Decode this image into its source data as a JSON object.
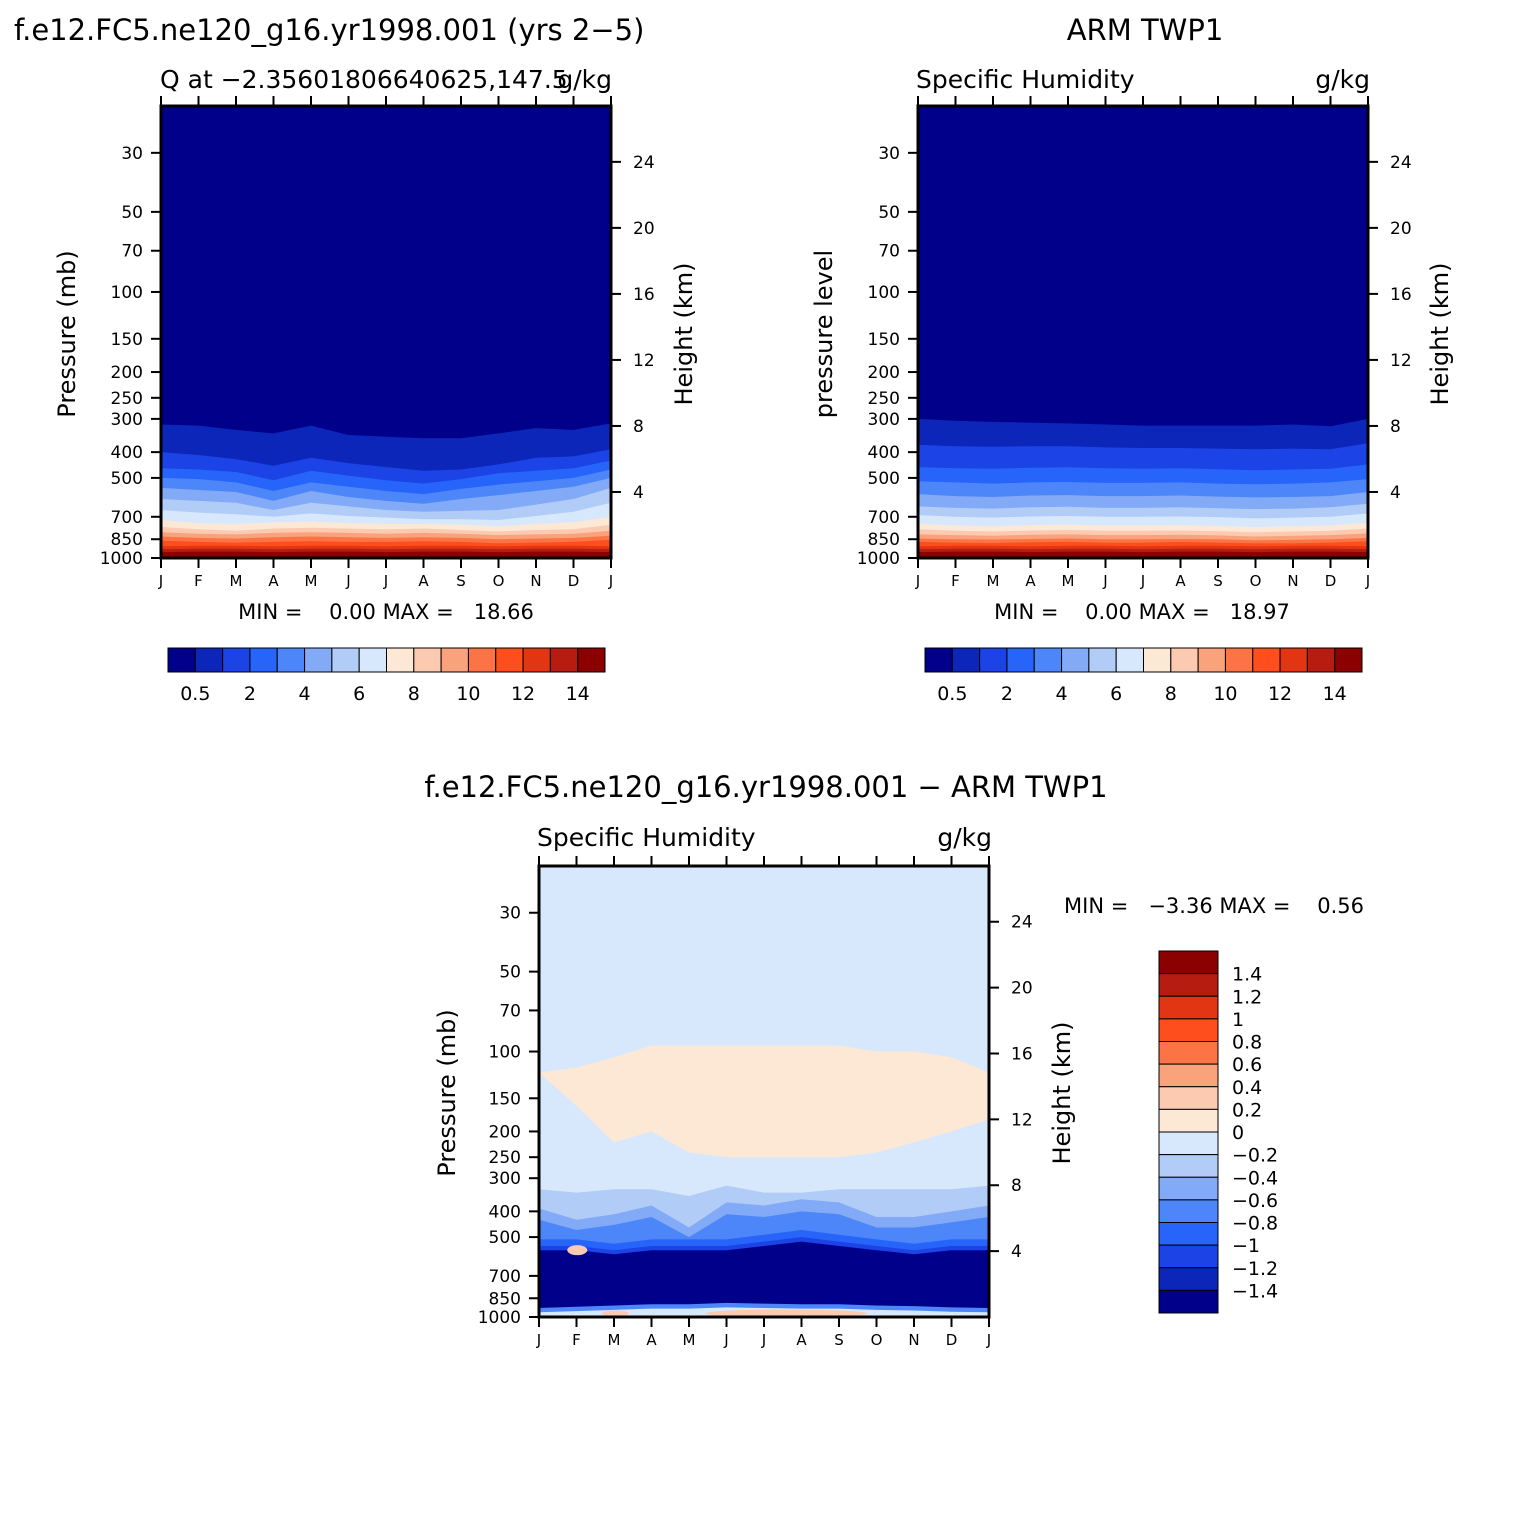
{
  "palette_sequential": [
    "#00008b",
    "#0b26b8",
    "#1b43e6",
    "#2764fa",
    "#4c86f8",
    "#82aaf6",
    "#b2ccf8",
    "#d8e8fc",
    "#fde8d6",
    "#fbcab0",
    "#f9a27c",
    "#fc7445",
    "#fe4e1e",
    "#e23514",
    "#b71c10",
    "#8b0000"
  ],
  "palette_difference": [
    "#00008b",
    "#0b26b8",
    "#1b43e6",
    "#2764fa",
    "#4c86f8",
    "#82aaf6",
    "#b2ccf8",
    "#d8e8fc",
    "#fde8d6",
    "#fbcab0",
    "#f9a27c",
    "#fc7445",
    "#fe4e1e",
    "#e23514",
    "#b71c10",
    "#8b0000"
  ],
  "chart_data": [
    {
      "type": "heatmap",
      "panel": "model",
      "title": "f.e12.FC5.ne120_g16.yr1998.001 (yrs 2−5)",
      "subtitle_left": "Q at −2.35601806640625,147.5",
      "subtitle_right": "g/kg",
      "xlabel": "",
      "ylabel": "Pressure (mb)",
      "y2label": "Height (km)",
      "x_ticks": [
        "J",
        "F",
        "M",
        "A",
        "M",
        "J",
        "J",
        "A",
        "S",
        "O",
        "N",
        "D",
        "J"
      ],
      "y_ticks": [
        30,
        50,
        70,
        100,
        150,
        200,
        250,
        300,
        400,
        500,
        700,
        850,
        1000
      ],
      "y_ticks_str": [
        "30",
        "50",
        "70",
        "100",
        "150",
        "200",
        "250",
        "300",
        "400",
        "500",
        "700",
        "850",
        "1000"
      ],
      "y2_ticks": [
        24,
        20,
        16,
        12,
        8,
        4
      ],
      "y2_ticks_str": [
        "24",
        "20",
        "16",
        "12",
        "8",
        "4"
      ],
      "ylim": [
        1000,
        20
      ],
      "stats_text": "MIN =    0.00 MAX =   18.66",
      "min": 0.0,
      "max": 18.66,
      "colorbar_levels": [
        0.5,
        1,
        2,
        3,
        4,
        5,
        6,
        7,
        8,
        9,
        10,
        11,
        12,
        13,
        14
      ],
      "colorbar_labels": [
        "0.5",
        "2",
        "4",
        "6",
        "8",
        "10",
        "12",
        "14"
      ],
      "contour_pressure_by_month": [
        [
          860,
          870,
          875,
          870,
          865,
          870,
          870,
          865,
          870,
          880,
          875,
          870,
          855
        ],
        [
          830,
          840,
          845,
          835,
          830,
          835,
          840,
          835,
          840,
          850,
          845,
          840,
          825
        ],
        [
          800,
          810,
          815,
          805,
          800,
          805,
          810,
          805,
          810,
          820,
          815,
          810,
          790
        ],
        [
          765,
          780,
          790,
          775,
          770,
          775,
          780,
          775,
          785,
          795,
          785,
          780,
          750
        ],
        [
          720,
          740,
          745,
          735,
          730,
          740,
          745,
          745,
          750,
          760,
          745,
          735,
          700
        ],
        [
          660,
          675,
          685,
          700,
          680,
          695,
          705,
          715,
          715,
          720,
          695,
          670,
          620
        ],
        [
          600,
          610,
          620,
          660,
          620,
          640,
          660,
          670,
          665,
          660,
          630,
          600,
          545
        ],
        [
          545,
          555,
          565,
          610,
          560,
          590,
          610,
          625,
          600,
          580,
          560,
          540,
          500
        ],
        [
          500,
          505,
          520,
          560,
          520,
          540,
          560,
          575,
          550,
          530,
          515,
          500,
          465
        ],
        [
          460,
          465,
          475,
          510,
          470,
          490,
          510,
          525,
          505,
          480,
          470,
          460,
          430
        ],
        [
          400,
          410,
          425,
          450,
          420,
          440,
          455,
          470,
          465,
          445,
          420,
          415,
          390
        ],
        [
          315,
          318,
          330,
          340,
          318,
          345,
          350,
          355,
          355,
          340,
          325,
          330,
          312
        ]
      ]
    },
    {
      "type": "heatmap",
      "panel": "observation",
      "title": "ARM TWP1",
      "subtitle_left": "Specific Humidity",
      "subtitle_right": "g/kg",
      "xlabel": "",
      "ylabel": "pressure level",
      "y2label": "Height (km)",
      "x_ticks": [
        "J",
        "F",
        "M",
        "A",
        "M",
        "J",
        "J",
        "A",
        "S",
        "O",
        "N",
        "D",
        "J"
      ],
      "y_ticks_str": [
        "30",
        "50",
        "70",
        "100",
        "150",
        "200",
        "250",
        "300",
        "400",
        "500",
        "700",
        "850",
        "1000"
      ],
      "y2_ticks_str": [
        "24",
        "20",
        "16",
        "12",
        "8",
        "4"
      ],
      "ylim": [
        1000,
        20
      ],
      "stats_text": "MIN =    0.00 MAX =   18.97",
      "min": 0.0,
      "max": 18.97,
      "colorbar_levels": [
        0.5,
        1,
        2,
        3,
        4,
        5,
        6,
        7,
        8,
        9,
        10,
        11,
        12,
        13,
        14
      ],
      "colorbar_labels": [
        "0.5",
        "2",
        "4",
        "6",
        "8",
        "10",
        "12",
        "14"
      ],
      "contour_pressure_by_month": [
        [
          870,
          875,
          878,
          872,
          870,
          875,
          875,
          870,
          875,
          880,
          880,
          875,
          865
        ],
        [
          845,
          850,
          852,
          848,
          845,
          850,
          850,
          848,
          850,
          858,
          855,
          850,
          840
        ],
        [
          815,
          820,
          825,
          818,
          815,
          820,
          820,
          818,
          822,
          830,
          825,
          820,
          808
        ],
        [
          780,
          790,
          795,
          788,
          785,
          790,
          790,
          788,
          792,
          800,
          795,
          790,
          775
        ],
        [
          745,
          755,
          760,
          752,
          750,
          755,
          755,
          752,
          758,
          765,
          760,
          755,
          738
        ],
        [
          690,
          700,
          705,
          698,
          695,
          700,
          700,
          698,
          702,
          710,
          705,
          700,
          680
        ],
        [
          640,
          648,
          652,
          645,
          642,
          648,
          648,
          645,
          650,
          655,
          652,
          645,
          625
        ],
        [
          575,
          585,
          590,
          582,
          580,
          585,
          585,
          582,
          588,
          592,
          590,
          585,
          565
        ],
        [
          515,
          520,
          525,
          520,
          518,
          522,
          522,
          520,
          525,
          528,
          525,
          520,
          505
        ],
        [
          455,
          460,
          462,
          458,
          456,
          460,
          462,
          460,
          464,
          468,
          465,
          462,
          445
        ],
        [
          375,
          380,
          382,
          380,
          380,
          384,
          386,
          386,
          388,
          390,
          388,
          390,
          370
        ],
        [
          300,
          305,
          308,
          310,
          312,
          315,
          318,
          318,
          318,
          318,
          315,
          320,
          300
        ]
      ]
    },
    {
      "type": "heatmap",
      "panel": "difference",
      "title": "f.e12.FC5.ne120_g16.yr1998.001 − ARM TWP1",
      "subtitle_left": "Specific Humidity",
      "subtitle_right": "g/kg",
      "xlabel": "",
      "ylabel": "Pressure (mb)",
      "y2label": "Height (km)",
      "x_ticks": [
        "J",
        "F",
        "M",
        "A",
        "M",
        "J",
        "J",
        "A",
        "S",
        "O",
        "N",
        "D",
        "J"
      ],
      "y_ticks_str": [
        "30",
        "50",
        "70",
        "100",
        "150",
        "200",
        "250",
        "300",
        "400",
        "500",
        "700",
        "850",
        "1000"
      ],
      "y2_ticks_str": [
        "24",
        "20",
        "16",
        "12",
        "8",
        "4"
      ],
      "ylim": [
        1000,
        20
      ],
      "stats_text": "MIN =   −3.36 MAX =    0.56",
      "min": -3.36,
      "max": 0.56,
      "colorbar_levels": [
        -1.4,
        -1.2,
        -1,
        -0.8,
        -0.6,
        -0.4,
        -0.2,
        0,
        0.2,
        0.4,
        0.6,
        0.8,
        1,
        1.2,
        1.4
      ],
      "colorbar_labels": [
        "1.4",
        "1.2",
        "1",
        "0.8",
        "0.6",
        "0.4",
        "0.2",
        "0",
        "−0.2",
        "−0.4",
        "−0.6",
        "−0.8",
        "−1",
        "−1.2",
        "−1.4"
      ],
      "positive_region_top_mb": [
        120,
        115,
        105,
        95,
        95,
        95,
        95,
        95,
        95,
        100,
        100,
        105,
        120
      ],
      "positive_region_bottom_mb": [
        120,
        160,
        220,
        200,
        240,
        250,
        250,
        250,
        250,
        240,
        220,
        200,
        180
      ],
      "minus04_top_mb": [
        330,
        340,
        330,
        330,
        350,
        320,
        340,
        340,
        330,
        330,
        330,
        330,
        320
      ],
      "minus08_top_mb": [
        430,
        470,
        450,
        420,
        500,
        410,
        420,
        400,
        410,
        460,
        460,
        440,
        420
      ],
      "minus14_top_mb": [
        560,
        560,
        580,
        560,
        560,
        560,
        540,
        520,
        540,
        560,
        580,
        560,
        560
      ],
      "near_surface_positive_top_mb": [
        960,
        950,
        940,
        930,
        930,
        920,
        925,
        930,
        930,
        940,
        945,
        955,
        960
      ]
    }
  ]
}
